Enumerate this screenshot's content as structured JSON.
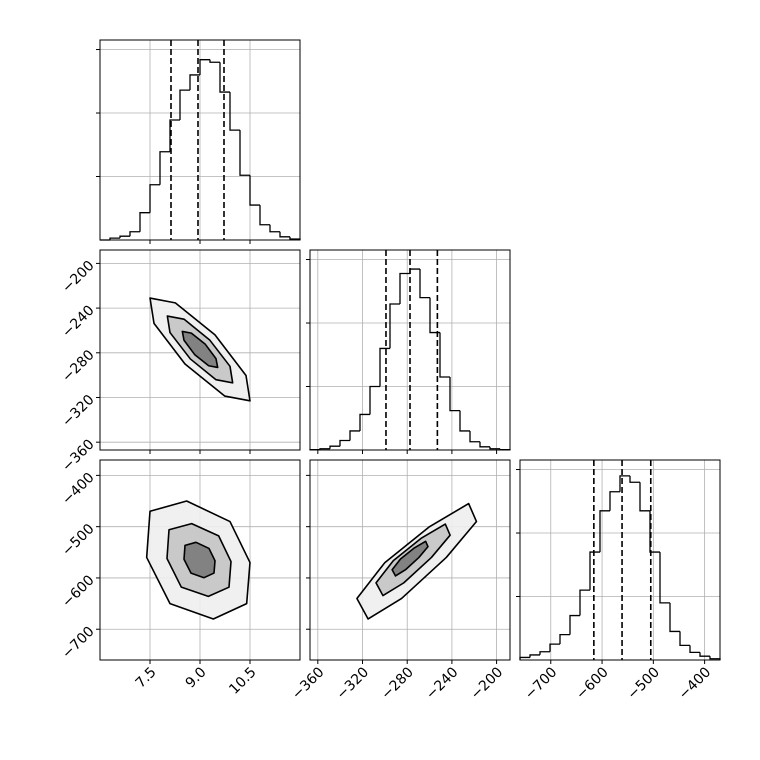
{
  "chart_data": {
    "type": "corner",
    "grid": true,
    "color": "#000000",
    "contour_fills": [
      "#eeeeee",
      "#c4c4c4",
      "#7a7a7a"
    ],
    "params": [
      {
        "lim": [
          6,
          12
        ],
        "ticks": [
          7.5,
          {
            "value": 9,
            "label": "9.0"
          },
          10.5
        ]
      },
      {
        "lim": [
          -367,
          -188
        ],
        "ticks": [
          {
            "value": -360,
            "label": "−360"
          },
          {
            "value": -320,
            "label": "−320"
          },
          {
            "value": -280,
            "label": "−280"
          },
          {
            "value": -240,
            "label": "−240"
          },
          {
            "value": -200,
            "label": "−200"
          }
        ]
      },
      {
        "lim": [
          -760,
          -370
        ],
        "ticks": [
          {
            "value": -700,
            "label": "−700"
          },
          {
            "value": -600,
            "label": "−600"
          },
          {
            "value": -500,
            "label": "−500"
          },
          {
            "value": -400,
            "label": "−400"
          }
        ]
      }
    ],
    "histograms": [
      {
        "bins": [
          6.0,
          6.3,
          6.6,
          6.9,
          7.2,
          7.5,
          7.8,
          8.1,
          8.4,
          8.7,
          9.0,
          9.3,
          9.6,
          9.9,
          10.2,
          10.5,
          10.8,
          11.1,
          11.4,
          11.7,
          12.0
        ],
        "counts": [
          0,
          30,
          60,
          130,
          430,
          870,
          1390,
          1890,
          2360,
          2600,
          2840,
          2800,
          2330,
          1730,
          1020,
          550,
          240,
          130,
          50,
          15
        ],
        "ylim": [
          0,
          3150
        ],
        "yticks": [
          1000,
          2000,
          3000
        ],
        "quantiles": [
          8.13,
          8.94,
          9.72
        ]
      },
      {
        "bins": [
          -367,
          -358.05,
          -349.1,
          -340.15,
          -331.2,
          -322.25,
          -313.3,
          -304.35,
          -295.4,
          -286.45,
          -277.5,
          -268.55,
          -259.6,
          -250.65,
          -241.7,
          -232.75,
          -223.8,
          -214.85,
          -205.9,
          -196.95,
          -188
        ],
        "counts": [
          5,
          20,
          60,
          150,
          300,
          560,
          1000,
          1600,
          2300,
          2780,
          2850,
          2400,
          1850,
          1150,
          620,
          300,
          130,
          50,
          20,
          5
        ],
        "ylim": [
          0,
          3150
        ],
        "yticks": [
          1000,
          2000,
          3000
        ],
        "quantiles": [
          -299,
          -277.5,
          -253
        ]
      },
      {
        "bins": [
          -760,
          -740.5,
          -721,
          -701.5,
          -682,
          -662.5,
          -643,
          -623.5,
          -604,
          -584.5,
          -565,
          -545.5,
          -526,
          -506.5,
          -487,
          -467.5,
          -448,
          -428.5,
          -409,
          -389.5,
          -370
        ],
        "counts": [
          40,
          80,
          130,
          250,
          400,
          700,
          1100,
          1700,
          2350,
          2650,
          2900,
          2800,
          2350,
          1700,
          900,
          450,
          230,
          120,
          60,
          20
        ],
        "ylim": [
          0,
          3150
        ],
        "yticks": [
          1000,
          2000,
          3000
        ],
        "quantiles": [
          -616,
          -561,
          -505
        ]
      }
    ],
    "pairs": [
      {
        "x": 0,
        "y": 1,
        "contours": [
          {
            "x": [
              10.5,
              10.38,
              9.45,
              8.26,
              7.5,
              7.62,
              8.55,
              9.74
            ],
            "y": [
              -323,
              -300.3,
              -264,
              -235.3,
              -231,
              -253.7,
              -290,
              -318.7
            ]
          },
          {
            "x": [
              9.98,
              9.9,
              9.29,
              8.52,
              8.02,
              8.1,
              8.71,
              9.48
            ],
            "y": [
              -306.9,
              -292.1,
              -268.5,
              -249.9,
              -247.1,
              -261.9,
              -285.5,
              -304.1
            ]
          },
          {
            "x": [
              9.53,
              9.48,
              9.16,
              8.74,
              8.47,
              8.52,
              8.84,
              9.26
            ],
            "y": [
              -293.1,
              -285.2,
              -272.4,
              -262.4,
              -260.9,
              -268.8,
              -281.6,
              -291.6
            ]
          }
        ]
      },
      {
        "x": 0,
        "y": 2,
        "contours": [
          {
            "x": [
              7.5,
              8.6,
              9.9,
              10.5,
              10.4,
              9.4,
              8.1,
              7.4
            ],
            "y": [
              -470,
              -450,
              -490,
              -570,
              -650,
              -680,
              -650,
              -560
            ]
          },
          {
            "x": [
              8.07,
              8.75,
              9.56,
              9.93,
              9.87,
              9.25,
              8.44,
              8.01
            ],
            "y": [
              -506,
              -494,
              -518,
              -568,
              -618,
              -636,
              -618,
              -562
            ]
          },
          {
            "x": [
              8.55,
              8.88,
              9.27,
              9.45,
              9.42,
              9.12,
              8.73,
              8.52
            ],
            "y": [
              -536.5,
              -530.5,
              -542.5,
              -566.5,
              -590.5,
              -599.5,
              -590.5,
              -563.5
            ]
          }
        ]
      },
      {
        "x": 1,
        "y": 2,
        "contours": [
          {
            "x": [
              -315,
              -325,
              -300,
              -260,
              -225,
              -218,
              -245,
              -285
            ],
            "y": [
              -680,
              -640,
              -570,
              -500,
              -455,
              -490,
              -560,
              -640
            ]
          },
          {
            "x": [
              -301.7,
              -307.9,
              -292.4,
              -267.6,
              -245.9,
              -241.6,
              -258.3,
              -283.1
            ],
            "y": [
              -634.4,
              -609.6,
              -566.2,
              -522.8,
              -494.9,
              -516.6,
              -560,
              -609.6
            ]
          },
          {
            "x": [
              -290.5,
              -293.5,
              -286,
              -274,
              -263.5,
              -261.4,
              -269.5,
              -281.5
            ],
            "y": [
              -596,
              -584,
              -563,
              -542,
              -528.5,
              -539,
              -560,
              -584
            ]
          }
        ]
      }
    ]
  }
}
